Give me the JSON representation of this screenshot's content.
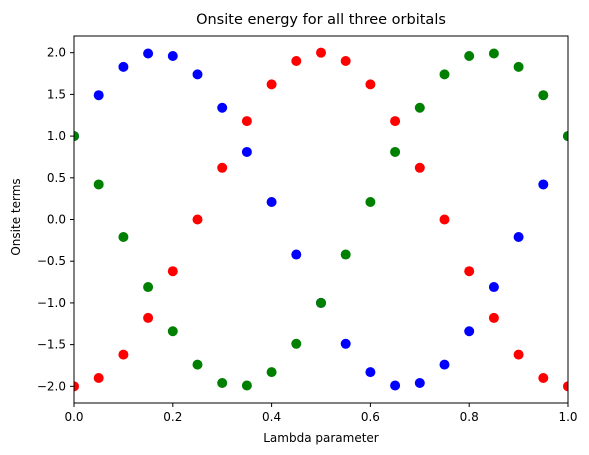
{
  "chart_data": {
    "type": "scatter",
    "title": "Onsite energy for all three orbitals",
    "xlabel": "Lambda parameter",
    "ylabel": "Onsite terms",
    "xlim": [
      0,
      1
    ],
    "ylim": [
      -2.2,
      2.2
    ],
    "x_ticks": [
      "0.0",
      "0.2",
      "0.4",
      "0.6",
      "0.8",
      "1.0"
    ],
    "y_ticks": [
      "−2.0",
      "−1.5",
      "−1.0",
      "−0.5",
      "0.0",
      "0.5",
      "1.0",
      "1.5",
      "2.0"
    ],
    "grid": false,
    "legend": "none",
    "x": [
      0,
      0.05,
      0.1,
      0.15,
      0.2,
      0.25,
      0.3,
      0.35,
      0.4,
      0.45,
      0.5,
      0.55,
      0.6,
      0.65,
      0.7,
      0.75,
      0.8,
      0.85,
      0.9,
      0.95,
      1.0
    ],
    "series": [
      {
        "color": "#ff0000",
        "values": [
          -2.0,
          -1.9,
          -1.62,
          -1.18,
          -0.62,
          0.0,
          0.62,
          1.18,
          1.62,
          1.9,
          2.0,
          1.9,
          1.62,
          1.18,
          0.62,
          0.0,
          -0.62,
          -1.18,
          -1.62,
          -1.9,
          -2.0
        ]
      },
      {
        "color": "#0000ff",
        "values": [
          1.0,
          1.49,
          1.83,
          1.99,
          1.96,
          1.74,
          1.34,
          0.81,
          0.21,
          -0.42,
          -1.0,
          -1.49,
          -1.83,
          -1.99,
          -1.96,
          -1.74,
          -1.34,
          -0.81,
          -0.21,
          0.42,
          1.0
        ]
      },
      {
        "color": "#008000",
        "values": [
          1.0,
          0.42,
          -0.21,
          -0.81,
          -1.34,
          -1.74,
          -1.96,
          -1.99,
          -1.83,
          -1.49,
          -1.0,
          -0.42,
          0.21,
          0.81,
          1.34,
          1.74,
          1.96,
          1.99,
          1.83,
          1.49,
          1.0
        ]
      }
    ]
  }
}
